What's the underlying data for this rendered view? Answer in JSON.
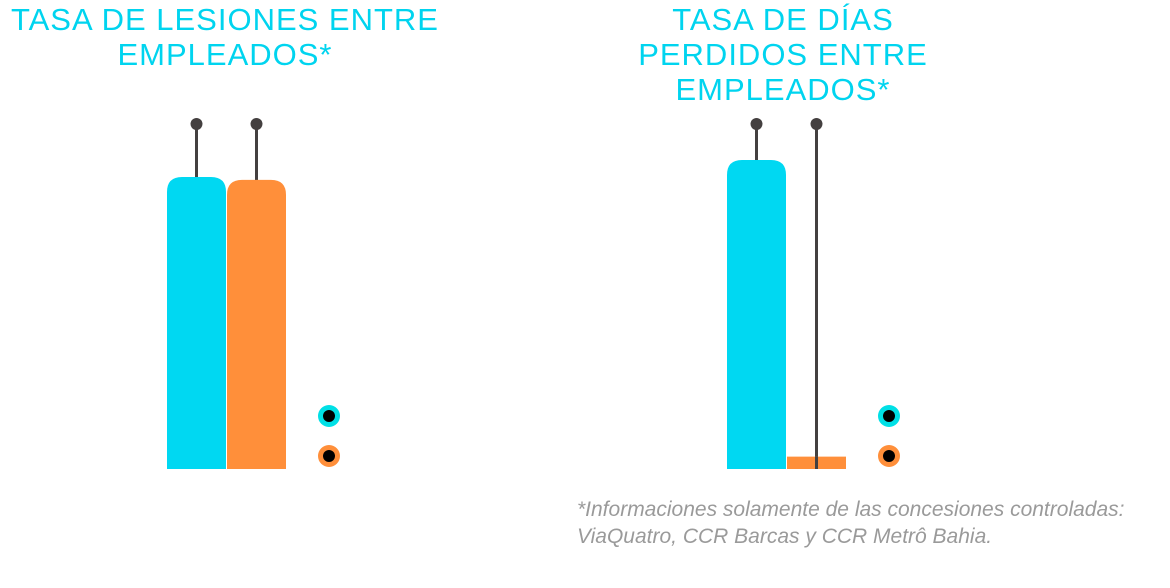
{
  "colors": {
    "title": "#00d4ef",
    "series_a": "#00d8f2",
    "series_b": "#ff8f3a",
    "whisker": "#444040",
    "note": "#9a9a9a"
  },
  "chart_data": [
    {
      "type": "bar",
      "title": "TASA DE LESIONES ENTRE EMPLEADOS*",
      "series": [
        {
          "values": [
            1.0
          ]
        },
        {
          "values": [
            0.99
          ]
        }
      ],
      "legend": "right",
      "grid": false,
      "note": "values relative; no axis or value labels printed"
    },
    {
      "type": "bar",
      "title": "TASA DE DÍAS PERDIDOS ENTRE EMPLEADOS*",
      "series": [
        {
          "values": [
            1.0
          ]
        },
        {
          "values": [
            0.04
          ]
        }
      ],
      "legend": "right",
      "grid": false
    }
  ],
  "footnote": {
    "line1": "*Informaciones solamente de las concesiones controladas:",
    "line2": "ViaQuatro, CCR Barcas y CCR Metrô Bahia."
  }
}
